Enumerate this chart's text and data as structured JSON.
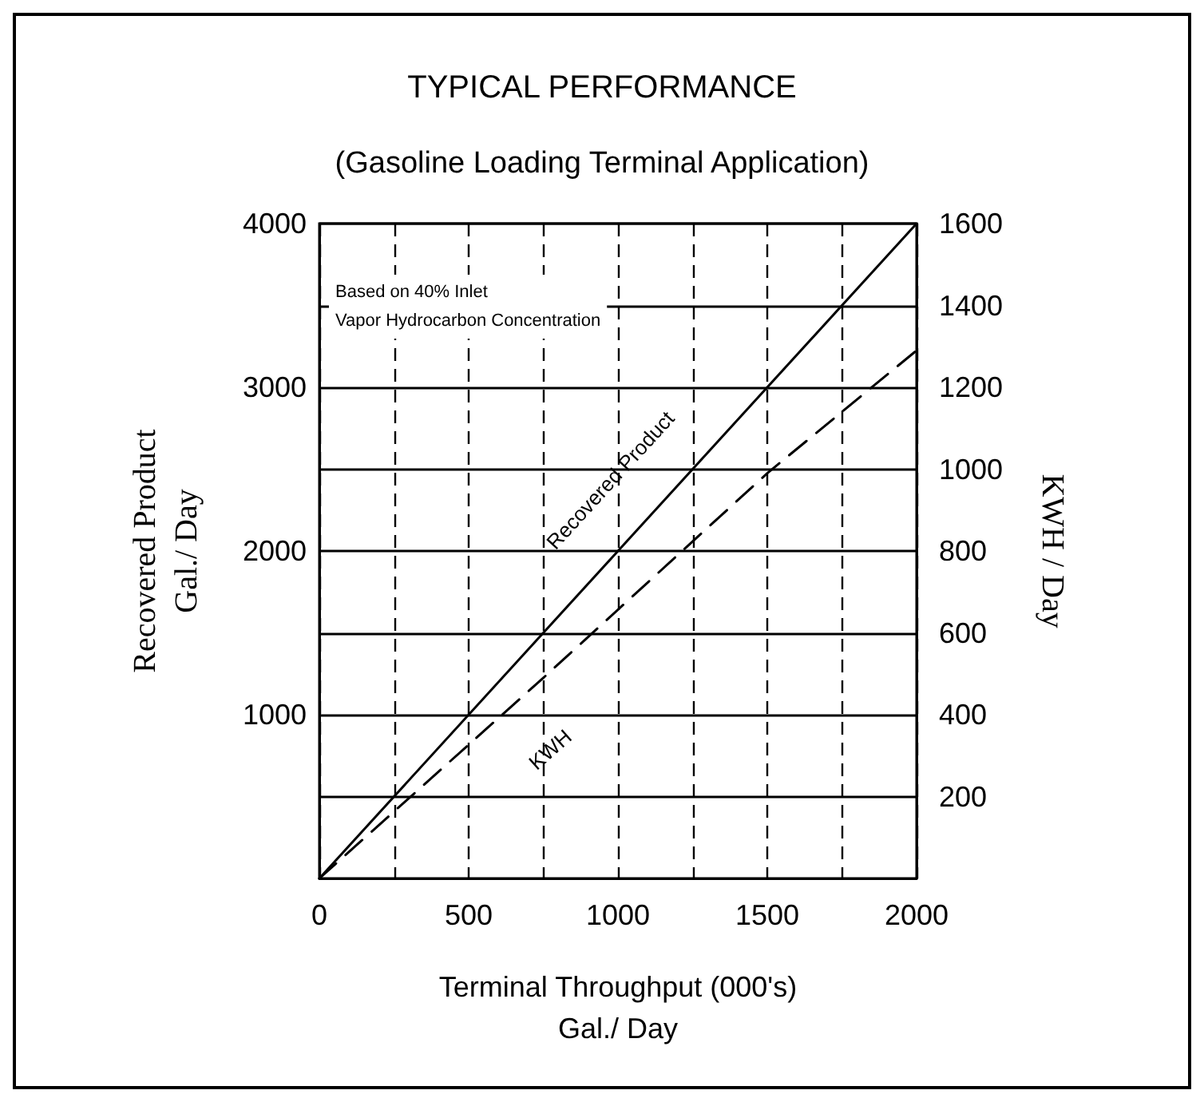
{
  "chart_data": {
    "type": "line",
    "title": "TYPICAL PERFORMANCE",
    "subtitle": "(Gasoline Loading Terminal Application)",
    "xlabel": "Terminal Throughput (000's)\nGal./ Day",
    "ylabel": "Recovered Product\nGal./ Day",
    "y2label": "KWH / Day",
    "annotations": [
      "Based on 40% Inlet\nVapor Hydrocarbon Concentration"
    ],
    "series": [
      {
        "name": "Recovered Product",
        "color": "#000000",
        "line_style": "solid",
        "x": [
          0,
          1000,
          2000
        ],
        "values": [
          0,
          2000,
          4000
        ]
      },
      {
        "name": "KWH",
        "color": "#000000",
        "line_style": "dashed",
        "axis": "y2",
        "x": [
          0,
          750,
          1500,
          2000
        ],
        "values": [
          0,
          490,
          990,
          1290
        ]
      }
    ],
    "xlim": [
      0,
      2000
    ],
    "xticks": [
      0,
      {
        "value": 250,
        "label": null
      },
      500,
      {
        "value": 750,
        "label": null
      },
      1000,
      {
        "value": 1250,
        "label": null
      },
      1500,
      {
        "value": 1750,
        "label": null
      },
      2000
    ],
    "ylim": [
      0,
      4000
    ],
    "yticks": [
      1000,
      2000,
      3000,
      4000
    ],
    "y2lim": [
      0,
      1600
    ],
    "y2ticks": [
      200,
      400,
      600,
      800,
      1000,
      1200,
      1400,
      1600
    ],
    "grid": true,
    "legend": false,
    "marker": "none"
  }
}
